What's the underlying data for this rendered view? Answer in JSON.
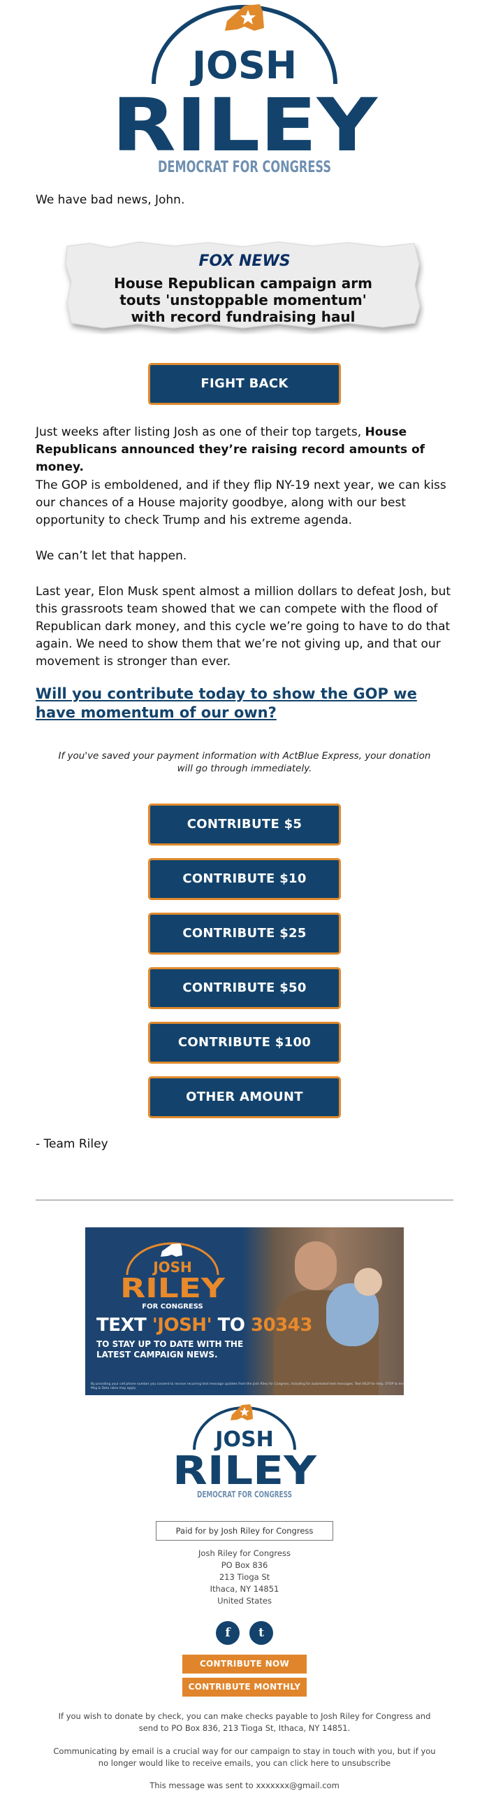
{
  "colors": {
    "navy": "#13436c",
    "orange": "#e08a2c",
    "steel": "#6f8fb0"
  },
  "header": {
    "logo_first": "JOSH",
    "logo_last": "RILEY",
    "logo_tagline": "DEMOCRAT FOR CONGRESS"
  },
  "greeting": "We have bad news, John.",
  "clipping": {
    "source": "FOX NEWS",
    "headline_line1": "House Republican campaign arm",
    "headline_line2": "touts 'unstoppable momentum'",
    "headline_line3": "with record fundraising haul"
  },
  "fight_back_label": "FIGHT BACK",
  "paragraphs": {
    "p1_plain": "Just weeks after listing Josh as one of their top targets, ",
    "p1_bold": "House Republicans announced they’re raising record amounts of money.",
    "p2": "The GOP is emboldened, and if they flip NY-19 next year, we can kiss our chances of a House majority goodbye, along with our best opportunity to check Trump and his extreme agenda.",
    "p3": "We can’t let that happen.",
    "p4": "Last year, Elon Musk spent almost a million dollars to defeat Josh, but this grassroots team showed that we can compete with the flood of Republican dark money, and this cycle we’re going to have to do that again. We need to show them that we’re not giving up, and that our movement is stronger than ever."
  },
  "cta_link": "Will you contribute today to show the GOP we have momentum of our own?",
  "actblue_note": "If you've saved your payment information with ActBlue Express, your donation will go through immediately.",
  "donate_buttons": [
    "CONTRIBUTE $5",
    "CONTRIBUTE $10",
    "CONTRIBUTE $25",
    "CONTRIBUTE $50",
    "CONTRIBUTE $100",
    "OTHER AMOUNT"
  ],
  "signoff": "- Team Riley",
  "banner": {
    "logo_first": "JOSH",
    "logo_last": "RILEY",
    "logo_tagline": "FOR CONGRESS",
    "text_prefix": "TEXT ",
    "text_keyword": "'JOSH'",
    "text_to": " TO ",
    "text_number": "30343",
    "subtext": "TO STAY UP TO DATE WITH THE LATEST CAMPAIGN NEWS.",
    "fineprint": "By providing your cell phone number you consent to receive recurring text message updates from the Josh Riley for Congress, including for automated text messages. Text HELP for help, STOP to end. Msg & Data rates may apply."
  },
  "footer": {
    "paid_for": "Paid for by Josh Riley for Congress",
    "address": [
      "Josh Riley for Congress",
      "PO Box 836",
      "213 Tioga St",
      "Ithaca, NY 14851",
      "United States"
    ],
    "social": [
      {
        "icon": "facebook-icon",
        "glyph": "f"
      },
      {
        "icon": "twitter-icon",
        "glyph": "t"
      }
    ],
    "contribute_now": "CONTRIBUTE NOW",
    "contribute_monthly": "CONTRIBUTE MONTHLY",
    "check_note": "If you wish to donate by check, you can make checks payable to Josh Riley for Congress and send to PO Box 836, 213 Tioga St, Ithaca, NY 14851.",
    "email_note": "Communicating by email is a crucial way for our campaign to stay in touch with you, but if you no longer would like to receive emails, you can click here to unsubscribe",
    "sent_to": "This message was sent to xxxxxxx@gmail.com"
  }
}
